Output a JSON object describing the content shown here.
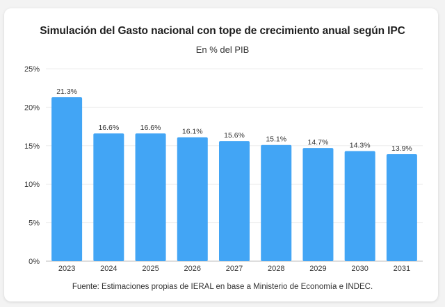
{
  "chart_data": {
    "type": "bar",
    "title": "Simulación del Gasto nacional con tope de crecimiento anual según IPC",
    "subtitle": "En % del PIB",
    "categories": [
      "2023",
      "2024",
      "2025",
      "2026",
      "2027",
      "2028",
      "2029",
      "2030",
      "2031"
    ],
    "values": [
      21.3,
      16.6,
      16.6,
      16.1,
      15.6,
      15.1,
      14.7,
      14.3,
      13.9
    ],
    "data_labels": [
      "21.3%",
      "16.6%",
      "16.6%",
      "16.1%",
      "15.6%",
      "15.1%",
      "14.7%",
      "14.3%",
      "13.9%"
    ],
    "y_ticks": [
      "0%",
      "5%",
      "10%",
      "15%",
      "20%",
      "25%"
    ],
    "ylim": [
      0,
      25
    ],
    "grid": true,
    "bar_color": "#42a5f5",
    "source": "Fuente: Estimaciones propias de IERAL en base a Ministerio de Economía e INDEC."
  }
}
